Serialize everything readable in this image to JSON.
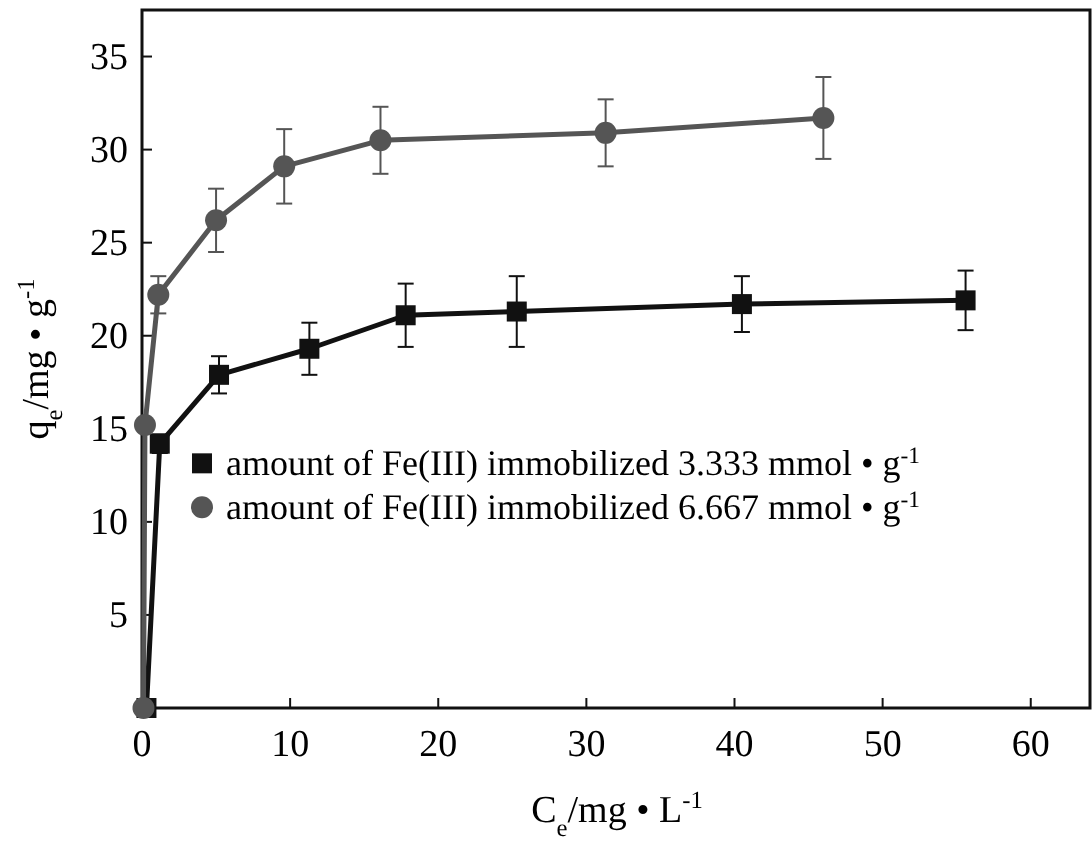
{
  "chart_data": {
    "type": "line",
    "xlabel": "C$_{e}$/mg • L$^{-1}$",
    "ylabel": "q$_{e}$/mg • g$^{-1}$",
    "xlim": [
      0,
      64
    ],
    "ylim": [
      0,
      37.5
    ],
    "xticks": [
      0,
      10,
      20,
      30,
      40,
      50,
      60
    ],
    "yticks": [
      5,
      10,
      15,
      20,
      25,
      30,
      35
    ],
    "grid": false,
    "legend": "left",
    "line_style": "solid",
    "series": [
      {
        "name": "amount of Fe(III) immobilized 3.333 mmol • g$^{-1}$",
        "color": "#111111",
        "marker": "square",
        "x": [
          0.3,
          1.2,
          5.2,
          11.3,
          17.8,
          25.3,
          40.5,
          55.6
        ],
        "values": [
          0,
          14.2,
          17.9,
          19.3,
          21.1,
          21.3,
          21.7,
          21.9
        ],
        "errors": [
          null,
          0.5,
          1,
          1.4,
          1.7,
          1.9,
          1.5,
          1.6
        ]
      },
      {
        "name": "amount of Fe(III) immobilized 6.667 mmol • g$^{-1}$",
        "color": "#555555",
        "marker": "circle",
        "x": [
          0.1,
          0.2,
          1.1,
          5.0,
          9.6,
          16.1,
          31.3,
          46
        ],
        "values": [
          0,
          15.2,
          22.2,
          26.2,
          29.1,
          30.5,
          30.9,
          31.7
        ],
        "errors": [
          null,
          null,
          1,
          1.7,
          2,
          1.8,
          1.8,
          2.2
        ]
      }
    ]
  }
}
